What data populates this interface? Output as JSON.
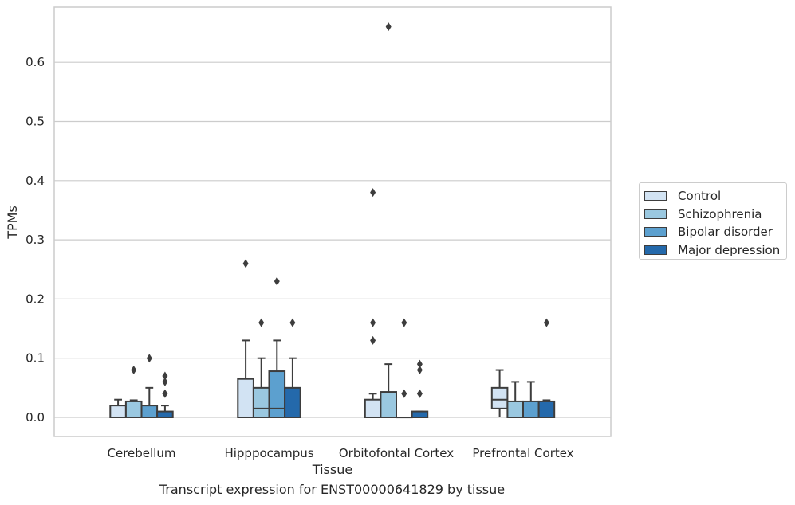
{
  "chart_data": {
    "type": "box",
    "xlabel": "Tissue",
    "ylabel": "TPMs",
    "caption": "Transcript expression for ENST00000641829 by tissue",
    "categories": [
      "Cerebellum",
      "Hipppocampus",
      "Orbitofontal Cortex",
      "Prefrontal Cortex"
    ],
    "ylim": [
      -0.032,
      0.694
    ],
    "yticks": [
      "0.0",
      "0.1",
      "0.2",
      "0.3",
      "0.4",
      "0.5",
      "0.6"
    ],
    "grid": true,
    "legend_position": "right",
    "series": [
      {
        "name": "Control",
        "color": "#d2e3f3",
        "boxes": [
          {
            "whislo": 0,
            "q1": 0,
            "med": 0,
            "q3": 0.02,
            "whishi": 0.03,
            "fliers": []
          },
          {
            "whislo": 0,
            "q1": 0,
            "med": 0,
            "q3": 0.065,
            "whishi": 0.13,
            "fliers": [
              0.26
            ]
          },
          {
            "whislo": 0,
            "q1": 0,
            "med": 0,
            "q3": 0.03,
            "whishi": 0.04,
            "fliers": [
              0.13,
              0.16,
              0.38
            ]
          },
          {
            "whislo": 0,
            "q1": 0.015,
            "med": 0.03,
            "q3": 0.05,
            "whishi": 0.08,
            "fliers": []
          }
        ]
      },
      {
        "name": "Schizophrenia",
        "color": "#9ac8e0",
        "boxes": [
          {
            "whislo": 0,
            "q1": 0,
            "med": 0,
            "q3": 0.027,
            "whishi": 0.029,
            "fliers": [
              0.08
            ]
          },
          {
            "whislo": 0,
            "q1": 0,
            "med": 0.015,
            "q3": 0.05,
            "whishi": 0.1,
            "fliers": [
              0.16
            ]
          },
          {
            "whislo": 0,
            "q1": 0,
            "med": 0,
            "q3": 0.043,
            "whishi": 0.09,
            "fliers": [
              0.66
            ]
          },
          {
            "whislo": 0,
            "q1": 0,
            "med": 0,
            "q3": 0.027,
            "whishi": 0.06,
            "fliers": []
          }
        ]
      },
      {
        "name": "Bipolar disorder",
        "color": "#5ca0cf",
        "boxes": [
          {
            "whislo": 0,
            "q1": 0,
            "med": 0,
            "q3": 0.02,
            "whishi": 0.05,
            "fliers": [
              0.1
            ]
          },
          {
            "whislo": 0,
            "q1": 0,
            "med": 0.015,
            "q3": 0.078,
            "whishi": 0.13,
            "fliers": [
              0.23
            ]
          },
          {
            "whislo": 0,
            "q1": 0,
            "med": 0,
            "q3": 0,
            "whishi": 0,
            "fliers": [
              0.04,
              0.16
            ]
          },
          {
            "whislo": 0,
            "q1": 0,
            "med": 0,
            "q3": 0.027,
            "whishi": 0.06,
            "fliers": []
          }
        ]
      },
      {
        "name": "Major depression",
        "color": "#2469ab",
        "boxes": [
          {
            "whislo": 0,
            "q1": 0,
            "med": 0,
            "q3": 0.01,
            "whishi": 0.02,
            "fliers": [
              0.04,
              0.06,
              0.07
            ]
          },
          {
            "whislo": 0,
            "q1": 0,
            "med": 0,
            "q3": 0.05,
            "whishi": 0.1,
            "fliers": [
              0.16
            ]
          },
          {
            "whislo": 0,
            "q1": 0,
            "med": 0,
            "q3": 0.01,
            "whishi": 0.01,
            "fliers": [
              0.04,
              0.08,
              0.09
            ]
          },
          {
            "whislo": 0,
            "q1": 0,
            "med": 0,
            "q3": 0.027,
            "whishi": 0.029,
            "fliers": [
              0.16
            ]
          }
        ]
      }
    ]
  }
}
